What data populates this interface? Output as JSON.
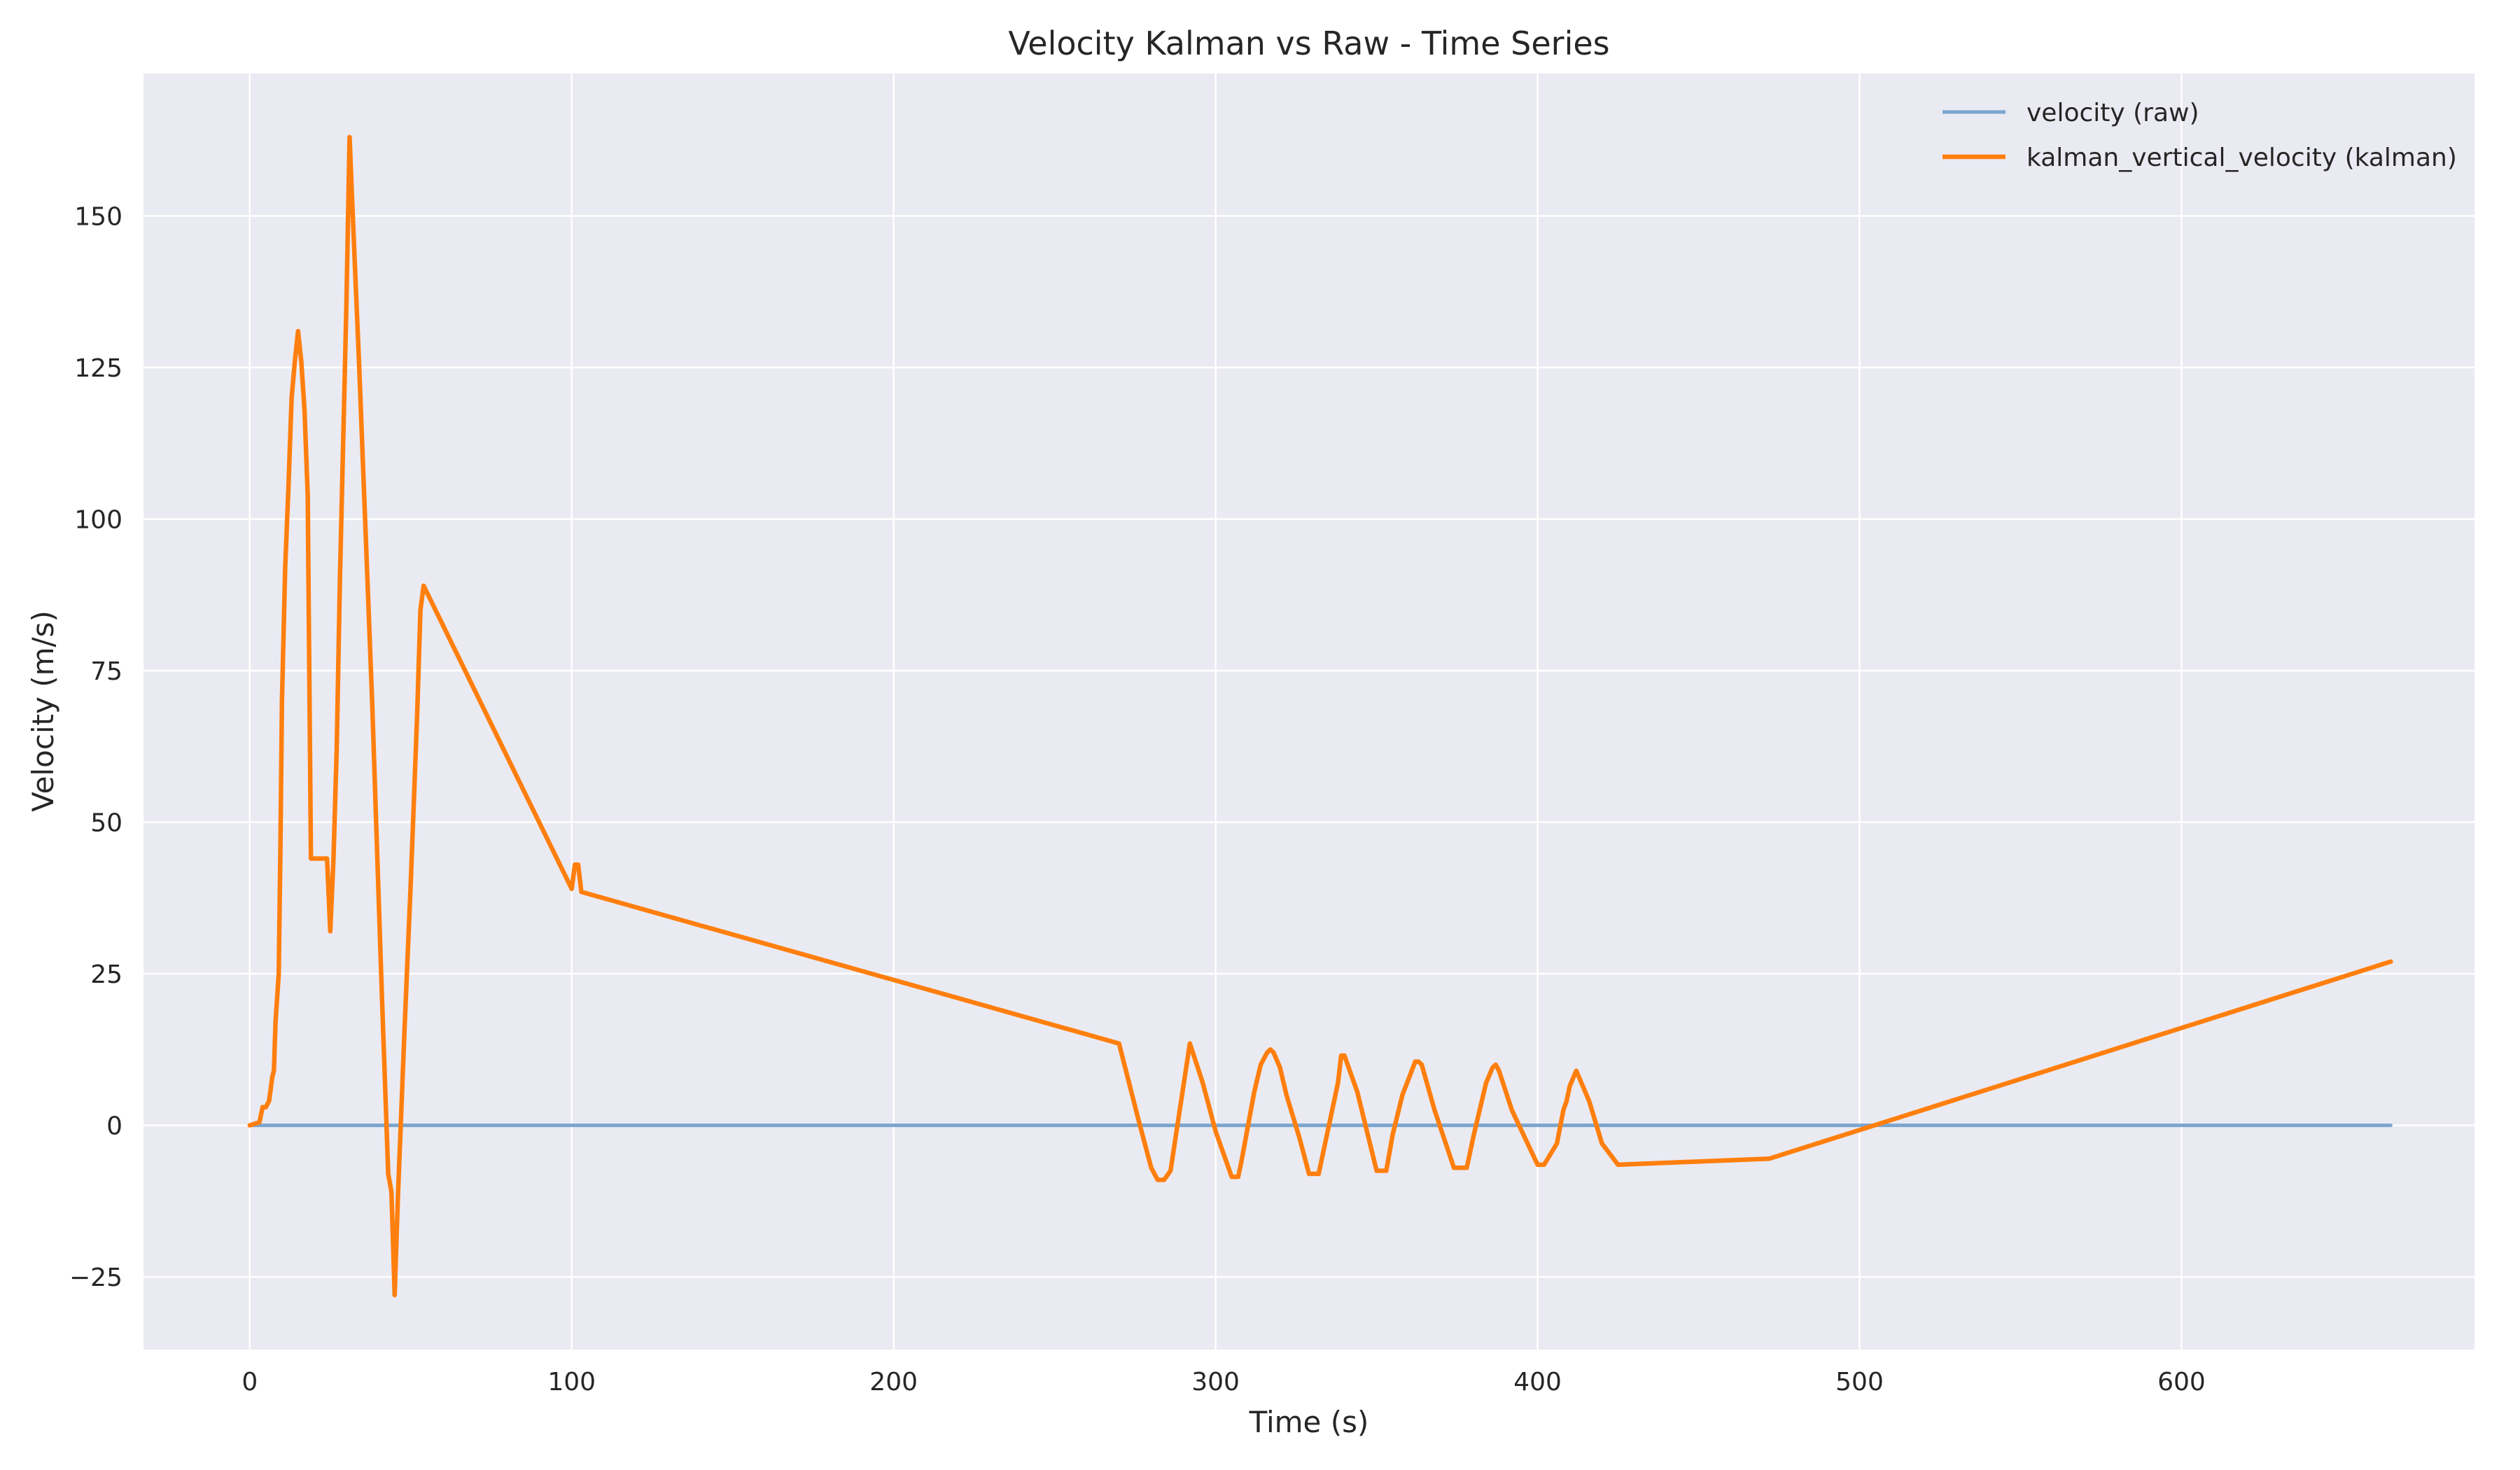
{
  "chart_data": {
    "type": "line",
    "title": "Velocity Kalman vs Raw - Time Series",
    "xlabel": "Time (s)",
    "ylabel": "Velocity (m/s)",
    "xlim": [
      -33,
      691
    ],
    "ylim": [
      -37,
      173.5
    ],
    "xticks": [
      0,
      100,
      200,
      300,
      400,
      500,
      600
    ],
    "yticks": [
      -25,
      0,
      25,
      50,
      75,
      100,
      125,
      150
    ],
    "xtick_labels": [
      "0",
      "100",
      "200",
      "300",
      "400",
      "500",
      "600"
    ],
    "ytick_labels": [
      "−25",
      "0",
      "25",
      "50",
      "75",
      "100",
      "125",
      "150"
    ],
    "grid": true,
    "legend_position": "top-right",
    "background": "#eaeaf2",
    "series": [
      {
        "name": "velocity (raw)",
        "color": "#7aa5cf",
        "x": [
          0,
          665
        ],
        "y": [
          0,
          0
        ]
      },
      {
        "name": "kalman_vertical_velocity (kalman)",
        "color": "#ff7f0e",
        "x": [
          0,
          3,
          4,
          5,
          6,
          7,
          7.5,
          8,
          9,
          9.5,
          10,
          11,
          12,
          13,
          14,
          15,
          16,
          17,
          18,
          19,
          20,
          21,
          24,
          25,
          26,
          27,
          28,
          30,
          31,
          32,
          34,
          38,
          41,
          43,
          44,
          45,
          46,
          48,
          50,
          52,
          53,
          54,
          100,
          101,
          102,
          103,
          270,
          276,
          280,
          282,
          284,
          286,
          290,
          292,
          296,
          300,
          305,
          306,
          307,
          308,
          312,
          314,
          316,
          317,
          318,
          320,
          322,
          326,
          329,
          331,
          332,
          334,
          338,
          339,
          340,
          344,
          350,
          352,
          353,
          355,
          358,
          362,
          363,
          364,
          368,
          374,
          376,
          378,
          380,
          384,
          386,
          387,
          388,
          392,
          400,
          402,
          406,
          408,
          409,
          410,
          412,
          416,
          420,
          425,
          472,
          665
        ],
        "y": [
          0,
          0.5,
          3,
          3,
          4,
          8,
          9,
          17,
          25,
          45,
          70,
          92,
          105,
          120,
          126,
          131,
          126,
          118,
          104,
          44,
          44,
          44,
          44,
          32,
          44,
          62,
          90,
          135,
          163,
          150,
          125,
          70,
          22,
          -8,
          -11,
          -28,
          -12,
          15,
          40,
          68,
          85,
          89,
          39,
          43,
          43,
          38.5,
          13.5,
          1,
          -7,
          -9,
          -9,
          -7.5,
          6.5,
          13.5,
          7,
          -1,
          -8.5,
          -8.5,
          -8.5,
          -6,
          5.5,
          10,
          12,
          12.5,
          12,
          9.5,
          5,
          -2,
          -8,
          -8,
          -8,
          -3,
          7,
          11.5,
          11.5,
          5.5,
          -7.5,
          -7.5,
          -7.5,
          -1.5,
          5,
          10.5,
          10.5,
          10,
          2.5,
          -7,
          -7,
          -7,
          -2,
          7,
          9.5,
          10,
          9,
          2.5,
          -6.5,
          -6.5,
          -3,
          2.5,
          4,
          6.5,
          9,
          4,
          -3,
          -6.5,
          -5.5,
          27
        ]
      }
    ]
  }
}
